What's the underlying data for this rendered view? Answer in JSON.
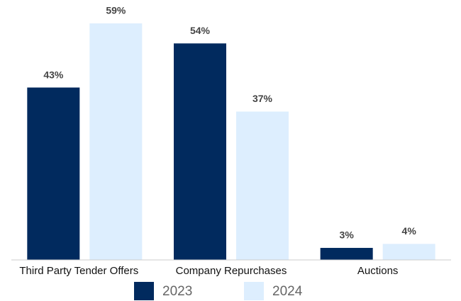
{
  "chart_data": {
    "type": "bar",
    "categories": [
      "Third Party Tender Offers",
      "Company Repurchases",
      "Auctions"
    ],
    "series": [
      {
        "name": "2023",
        "color": "#012a5e",
        "values": [
          43,
          54,
          3
        ],
        "value_labels": [
          "43%",
          "54%",
          "3%"
        ]
      },
      {
        "name": "2024",
        "color": "#ddeefe",
        "values": [
          59,
          37,
          4
        ],
        "value_labels": [
          "59%",
          "37%",
          "4%"
        ]
      }
    ]
  }
}
